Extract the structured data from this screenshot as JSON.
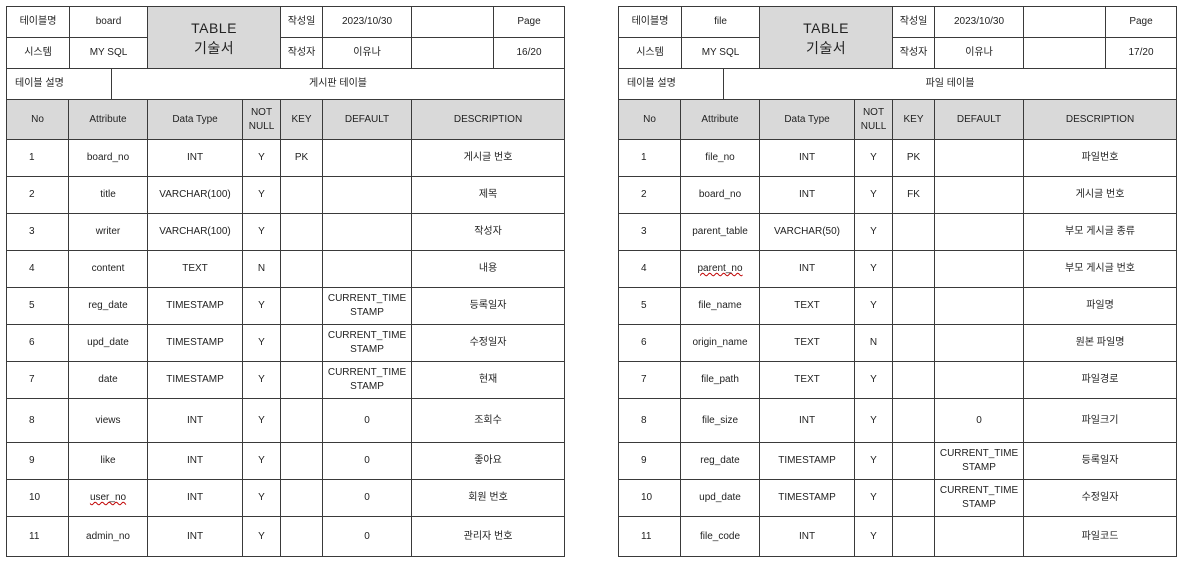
{
  "labels": {
    "table_name": "테이블명",
    "doc_type_line1": "TABLE",
    "doc_type_line2": "기술서",
    "created_date_label": "작성일",
    "page_label": "Page",
    "system_label": "시스템",
    "author_label": "작성자",
    "table_desc_label": "테이블 설명"
  },
  "columns": [
    "No",
    "Attribute",
    "Data Type",
    "NOT NULL",
    "KEY",
    "DEFAULT",
    "DESCRIPTION"
  ],
  "tables": [
    {
      "name": "board",
      "date": "2023/10/30",
      "system": "MY SQL",
      "author": "이유나",
      "page": "16/20",
      "description": "게시판 테이블",
      "rows": [
        {
          "no": "1",
          "attr": "board_no",
          "type": "INT",
          "notnull": "Y",
          "key": "PK",
          "default": "",
          "desc": "게시글 번호"
        },
        {
          "no": "2",
          "attr": "title",
          "type": "VARCHAR(100)",
          "notnull": "Y",
          "key": "",
          "default": "",
          "desc": "제목"
        },
        {
          "no": "3",
          "attr": "writer",
          "type": "VARCHAR(100)",
          "notnull": "Y",
          "key": "",
          "default": "",
          "desc": "작성자"
        },
        {
          "no": "4",
          "attr": "content",
          "type": "TEXT",
          "notnull": "N",
          "key": "",
          "default": "",
          "desc": "내용"
        },
        {
          "no": "5",
          "attr": "reg_date",
          "type": "TIMESTAMP",
          "notnull": "Y",
          "key": "",
          "default": "CURRENT_TIME STAMP",
          "desc": "등록일자"
        },
        {
          "no": "6",
          "attr": "upd_date",
          "type": "TIMESTAMP",
          "notnull": "Y",
          "key": "",
          "default": "CURRENT_TIME STAMP",
          "desc": "수정일자"
        },
        {
          "no": "7",
          "attr": "date",
          "type": "TIMESTAMP",
          "notnull": "Y",
          "key": "",
          "default": "CURRENT_TIME STAMP",
          "desc": "현재"
        },
        {
          "no": "8",
          "attr": "views",
          "type": "INT",
          "notnull": "Y",
          "key": "",
          "default": "0",
          "desc": "조회수"
        },
        {
          "no": "9",
          "attr": "like",
          "type": "INT",
          "notnull": "Y",
          "key": "",
          "default": "0",
          "desc": "좋아요"
        },
        {
          "no": "10",
          "attr": "user_no",
          "type": "INT",
          "notnull": "Y",
          "key": "",
          "default": "0",
          "desc": "회원 번호",
          "underline": true
        },
        {
          "no": "11",
          "attr": "admin_no",
          "type": "INT",
          "notnull": "Y",
          "key": "",
          "default": "0",
          "desc": "관리자 번호"
        }
      ]
    },
    {
      "name": "file",
      "date": "2023/10/30",
      "system": "MY SQL",
      "author": "이유나",
      "page": "17/20",
      "description": "파일 테이블",
      "rows": [
        {
          "no": "1",
          "attr": "file_no",
          "type": "INT",
          "notnull": "Y",
          "key": "PK",
          "default": "",
          "desc": "파일번호"
        },
        {
          "no": "2",
          "attr": "board_no",
          "type": "INT",
          "notnull": "Y",
          "key": "FK",
          "default": "",
          "desc": "게시글 번호"
        },
        {
          "no": "3",
          "attr": "parent_table",
          "type": "VARCHAR(50)",
          "notnull": "Y",
          "key": "",
          "default": "",
          "desc": "부모 게시글 종류"
        },
        {
          "no": "4",
          "attr": "parent_no",
          "type": "INT",
          "notnull": "Y",
          "key": "",
          "default": "",
          "desc": "부모 게시글 번호",
          "underline": true
        },
        {
          "no": "5",
          "attr": "file_name",
          "type": "TEXT",
          "notnull": "Y",
          "key": "",
          "default": "",
          "desc": "파일명"
        },
        {
          "no": "6",
          "attr": "origin_name",
          "type": "TEXT",
          "notnull": "N",
          "key": "",
          "default": "",
          "desc": "원본 파일명"
        },
        {
          "no": "7",
          "attr": "file_path",
          "type": "TEXT",
          "notnull": "Y",
          "key": "",
          "default": "",
          "desc": "파일경로"
        },
        {
          "no": "8",
          "attr": "file_size",
          "type": "INT",
          "notnull": "Y",
          "key": "",
          "default": "0",
          "desc": "파일크기"
        },
        {
          "no": "9",
          "attr": "reg_date",
          "type": "TIMESTAMP",
          "notnull": "Y",
          "key": "",
          "default": "CURRENT_TIME STAMP",
          "desc": "등록일자"
        },
        {
          "no": "10",
          "attr": "upd_date",
          "type": "TIMESTAMP",
          "notnull": "Y",
          "key": "",
          "default": "CURRENT_TIME STAMP",
          "desc": "수정일자"
        },
        {
          "no": "11",
          "attr": "file_code",
          "type": "INT",
          "notnull": "Y",
          "key": "",
          "default": "",
          "desc": "파일코드"
        }
      ]
    }
  ]
}
